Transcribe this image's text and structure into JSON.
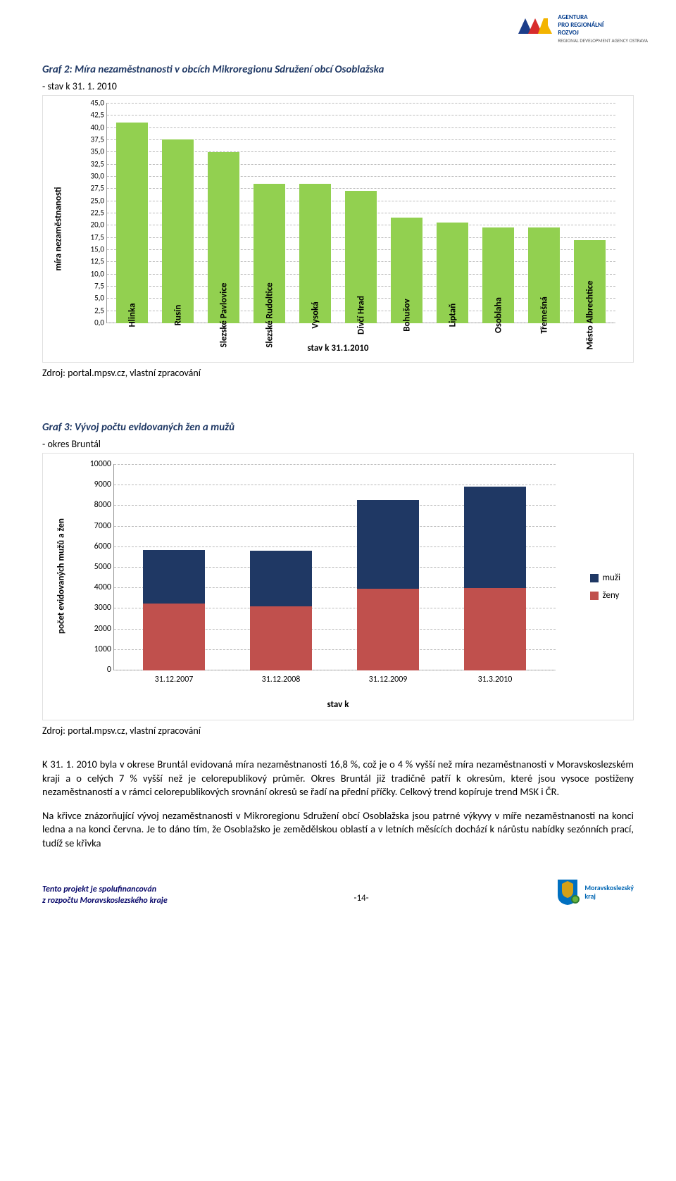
{
  "top_logo": {
    "lines": [
      "AGENTURA",
      "PRO REGIONÁLNÍ",
      "ROZVOJ"
    ],
    "sub": "REGIONAL DEVELOPMENT AGENCY OSTRAVA",
    "colors": {
      "blue": "#1d3e8a",
      "red": "#d82c2c",
      "yellow": "#f3b400"
    }
  },
  "chart1": {
    "title": "Graf 2: Míra nezaměstnanosti v obcích Mikroregionu Sdružení obcí Osoblažska",
    "subtitle": "- stav k 31. 1. 2010",
    "type": "bar",
    "ylabel": "míra nezaměstnanosti",
    "xlabel": "stav k 31.1.2010",
    "ylim": [
      0,
      45
    ],
    "ytick_step": 2.5,
    "yticks": [
      "0,0",
      "2,5",
      "5,0",
      "7,5",
      "10,0",
      "12,5",
      "15,0",
      "17,5",
      "20,0",
      "22,5",
      "25,0",
      "27,5",
      "30,0",
      "32,5",
      "35,0",
      "37,5",
      "40,0",
      "42,5",
      "45,0"
    ],
    "bar_color": "#92d050",
    "grid_color": "#bbbbbb",
    "background_color": "#ffffff",
    "categories": [
      "Hlinka",
      "Rusín",
      "Slezské Pavlovice",
      "Slezské Rudoltice",
      "Vysoká",
      "Dívčí Hrad",
      "Bohušov",
      "Liptaň",
      "Osoblaha",
      "Třemešná",
      "Město Albrechtice"
    ],
    "values": [
      41.0,
      37.5,
      35.0,
      28.5,
      28.5,
      27.0,
      21.5,
      20.5,
      19.5,
      19.5,
      17.0
    ],
    "source": "Zdroj: portal.mpsv.cz, vlastní zpracování"
  },
  "chart2": {
    "title": "Graf 3: Vývoj počtu evidovaných žen a mužů",
    "subtitle": "- okres Bruntál",
    "type": "stacked-bar",
    "ylabel": "počet evidovaných mužů a žen",
    "xlabel": "stav k",
    "ylim": [
      0,
      10000
    ],
    "ytick_step": 1000,
    "yticks": [
      "0",
      "1000",
      "2000",
      "3000",
      "4000",
      "5000",
      "6000",
      "7000",
      "8000",
      "9000",
      "10000"
    ],
    "grid_color": "#bbbbbb",
    "background_color": "#ffffff",
    "categories": [
      "31.12.2007",
      "31.12.2008",
      "31.12.2009",
      "31.3.2010"
    ],
    "series": [
      {
        "name": "ženy",
        "color": "#c0504d",
        "values": [
          3250,
          3100,
          3950,
          4000
        ]
      },
      {
        "name": "muži",
        "color": "#1f3864",
        "values": [
          2600,
          2700,
          4300,
          4900
        ]
      }
    ],
    "legend": [
      {
        "label": "muži",
        "color": "#1f3864"
      },
      {
        "label": "ženy",
        "color": "#c0504d"
      }
    ],
    "source": "Zdroj: portal.mpsv.cz, vlastní zpracování"
  },
  "paragraphs": [
    "K 31. 1. 2010 byla v okrese Bruntál evidovaná míra nezaměstnanosti 16,8 %, což je o 4 % vyšší než míra nezaměstnanosti v Moravskoslezském kraji a o celých 7 % vyšší než je celorepublikový průměr. Okres Bruntál již tradičně patří k okresům, které jsou vysoce postiženy nezaměstnaností a v rámci celorepublikových srovnání okresů se řadí na přední příčky. Celkový trend kopíruje trend MSK i ČR.",
    "Na křivce znázorňující vývoj nezaměstnanosti v Mikroregionu Sdružení obcí Osoblažska jsou patrné výkyvy v míře nezaměstnanosti na konci ledna a na konci června. Je to dáno tím, že Osoblažsko je zemědělskou oblastí a v letních měsících dochází k nárůstu nabídky sezónních prací, tudíž se křivka"
  ],
  "footer": {
    "left_line1": "Tento projekt je spolufinancován",
    "left_line2": "z rozpočtu Moravskoslezského kraje",
    "page": "-14-",
    "logo_line1": "Moravskoslezský",
    "logo_line2": "kraj",
    "logo_colors": {
      "blue": "#0070c0",
      "gold": "#d4a017",
      "green": "#2e7d32"
    }
  }
}
